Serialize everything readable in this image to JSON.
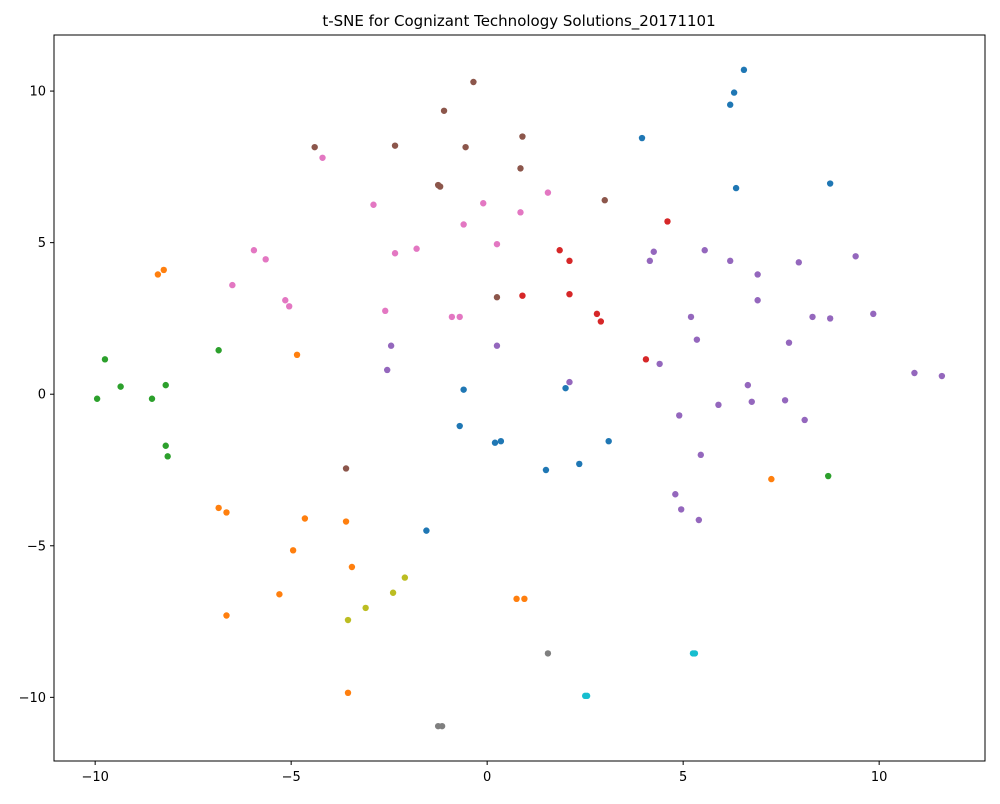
{
  "chart_data": {
    "type": "scatter",
    "title": "t-SNE for Cognizant Technology Solutions_20171101",
    "xlabel": "",
    "ylabel": "",
    "xlim": [
      -11.05,
      12.7
    ],
    "ylim": [
      -12.1,
      11.85
    ],
    "xticks": [
      -10,
      -5,
      0,
      5,
      10
    ],
    "yticks": [
      -10,
      -5,
      0,
      5,
      10
    ],
    "grid": false,
    "series": [
      {
        "color": "#1f77b4",
        "points": [
          [
            6.55,
            10.7
          ],
          [
            6.3,
            9.95
          ],
          [
            6.2,
            9.55
          ],
          [
            3.95,
            8.45
          ],
          [
            6.35,
            6.8
          ],
          [
            8.75,
            6.95
          ],
          [
            -0.6,
            0.15
          ],
          [
            -0.7,
            -1.05
          ],
          [
            0.2,
            -1.6
          ],
          [
            0.35,
            -1.55
          ],
          [
            2.0,
            0.2
          ],
          [
            3.1,
            -1.55
          ],
          [
            2.35,
            -2.3
          ],
          [
            1.5,
            -2.5
          ],
          [
            -1.55,
            -4.5
          ]
        ]
      },
      {
        "color": "#ff7f0e",
        "points": [
          [
            -8.25,
            4.1
          ],
          [
            -8.4,
            3.95
          ],
          [
            -4.85,
            1.3
          ],
          [
            -6.85,
            -3.75
          ],
          [
            -6.65,
            -3.9
          ],
          [
            -4.65,
            -4.1
          ],
          [
            -3.6,
            -4.2
          ],
          [
            -4.95,
            -5.15
          ],
          [
            -3.45,
            -5.7
          ],
          [
            -5.3,
            -6.6
          ],
          [
            -6.65,
            -7.3
          ],
          [
            0.75,
            -6.75
          ],
          [
            0.95,
            -6.75
          ],
          [
            7.25,
            -2.8
          ],
          [
            -3.55,
            -9.85
          ]
        ]
      },
      {
        "color": "#2ca02c",
        "points": [
          [
            -9.75,
            1.15
          ],
          [
            -9.35,
            0.25
          ],
          [
            -9.95,
            -0.15
          ],
          [
            -8.2,
            0.3
          ],
          [
            -8.55,
            -0.15
          ],
          [
            -6.85,
            1.45
          ],
          [
            -8.2,
            -1.7
          ],
          [
            -8.15,
            -2.05
          ],
          [
            8.7,
            -2.7
          ]
        ]
      },
      {
        "color": "#d62728",
        "points": [
          [
            4.6,
            5.7
          ],
          [
            1.85,
            4.75
          ],
          [
            2.1,
            4.4
          ],
          [
            0.9,
            3.25
          ],
          [
            2.1,
            3.3
          ],
          [
            2.8,
            2.65
          ],
          [
            2.9,
            2.4
          ],
          [
            4.05,
            1.15
          ]
        ]
      },
      {
        "color": "#9467bd",
        "points": [
          [
            4.25,
            4.7
          ],
          [
            4.15,
            4.4
          ],
          [
            5.55,
            4.75
          ],
          [
            6.2,
            4.4
          ],
          [
            6.9,
            3.95
          ],
          [
            7.95,
            4.35
          ],
          [
            9.4,
            4.55
          ],
          [
            6.9,
            3.1
          ],
          [
            5.2,
            2.55
          ],
          [
            8.3,
            2.55
          ],
          [
            8.75,
            2.5
          ],
          [
            9.85,
            2.65
          ],
          [
            5.35,
            1.8
          ],
          [
            7.7,
            1.7
          ],
          [
            4.4,
            1.0
          ],
          [
            6.65,
            0.3
          ],
          [
            10.9,
            0.7
          ],
          [
            11.6,
            0.6
          ],
          [
            2.1,
            0.4
          ],
          [
            5.9,
            -0.35
          ],
          [
            6.75,
            -0.25
          ],
          [
            7.6,
            -0.2
          ],
          [
            4.9,
            -0.7
          ],
          [
            8.1,
            -0.85
          ],
          [
            5.45,
            -2.0
          ],
          [
            4.8,
            -3.3
          ],
          [
            4.95,
            -3.8
          ],
          [
            5.4,
            -4.15
          ],
          [
            -2.45,
            1.6
          ],
          [
            -2.55,
            0.8
          ],
          [
            0.25,
            1.6
          ]
        ]
      },
      {
        "color": "#8c564b",
        "points": [
          [
            -0.35,
            10.3
          ],
          [
            -1.1,
            9.35
          ],
          [
            0.9,
            8.5
          ],
          [
            -4.4,
            8.15
          ],
          [
            -2.35,
            8.2
          ],
          [
            -0.55,
            8.15
          ],
          [
            0.85,
            7.45
          ],
          [
            -1.25,
            6.9
          ],
          [
            -1.2,
            6.85
          ],
          [
            3.0,
            6.4
          ],
          [
            0.25,
            3.2
          ],
          [
            -3.6,
            -2.45
          ]
        ]
      },
      {
        "color": "#e377c2",
        "points": [
          [
            -4.2,
            7.8
          ],
          [
            1.55,
            6.65
          ],
          [
            -2.9,
            6.25
          ],
          [
            -0.1,
            6.3
          ],
          [
            0.85,
            6.0
          ],
          [
            -0.6,
            5.6
          ],
          [
            -5.95,
            4.75
          ],
          [
            -5.65,
            4.45
          ],
          [
            -1.8,
            4.8
          ],
          [
            -2.35,
            4.65
          ],
          [
            0.25,
            4.95
          ],
          [
            -6.5,
            3.6
          ],
          [
            -5.15,
            3.1
          ],
          [
            -5.05,
            2.9
          ],
          [
            -2.6,
            2.75
          ],
          [
            -0.9,
            2.55
          ],
          [
            -0.7,
            2.55
          ]
        ]
      },
      {
        "color": "#7f7f7f",
        "points": [
          [
            1.55,
            -8.55
          ],
          [
            -1.15,
            -10.95
          ],
          [
            -1.25,
            -10.95
          ]
        ]
      },
      {
        "color": "#bcbd22",
        "points": [
          [
            -2.1,
            -6.05
          ],
          [
            -2.4,
            -6.55
          ],
          [
            -3.1,
            -7.05
          ],
          [
            -3.55,
            -7.45
          ]
        ]
      },
      {
        "color": "#17becf",
        "points": [
          [
            5.25,
            -8.55
          ],
          [
            5.3,
            -8.55
          ],
          [
            2.5,
            -9.95
          ],
          [
            2.55,
            -9.95
          ]
        ]
      }
    ]
  }
}
